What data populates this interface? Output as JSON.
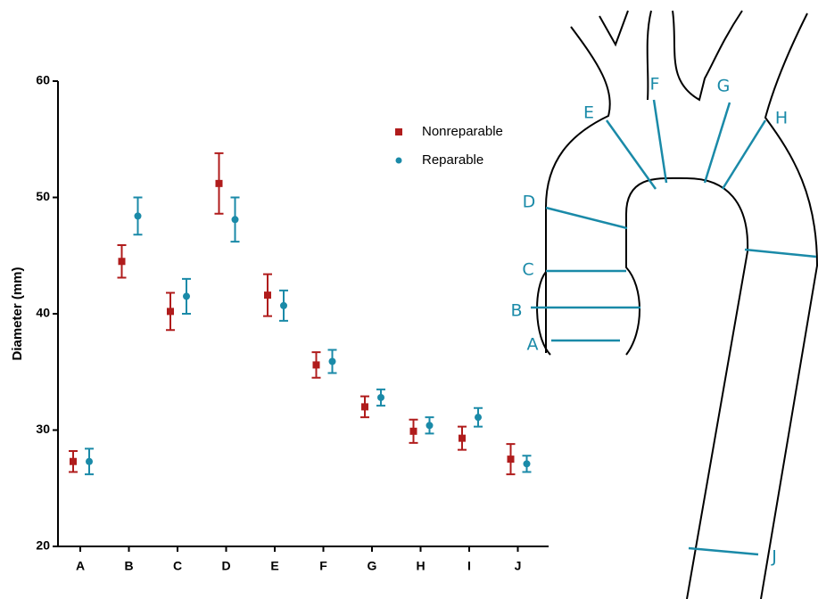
{
  "chart_data": {
    "type": "errorbar",
    "y_label": "Diameter (mm)",
    "categories": [
      "A",
      "B",
      "C",
      "D",
      "E",
      "F",
      "G",
      "H",
      "I",
      "J"
    ],
    "series": [
      {
        "name": "Nonreparable",
        "color": "#b01c1c",
        "marker": "square",
        "values": [
          27.3,
          44.5,
          40.2,
          51.2,
          41.6,
          35.6,
          32.0,
          29.9,
          29.3,
          27.5
        ],
        "errors": [
          0.9,
          1.4,
          1.6,
          2.6,
          1.8,
          1.1,
          0.9,
          1.0,
          1.0,
          1.3
        ]
      },
      {
        "name": "Reparable",
        "color": "#1a8aa8",
        "marker": "circle",
        "values": [
          27.3,
          48.4,
          41.5,
          48.1,
          40.7,
          35.9,
          32.8,
          30.4,
          31.1,
          27.1
        ],
        "errors": [
          1.1,
          1.6,
          1.5,
          1.9,
          1.3,
          1.0,
          0.7,
          0.7,
          0.8,
          0.7
        ]
      }
    ],
    "ylim": [
      20,
      60
    ],
    "yticks": [
      20,
      30,
      40,
      50,
      60
    ],
    "grid": false
  },
  "diagram": {
    "labels": [
      "E",
      "F",
      "G",
      "H",
      "D",
      "C",
      "B",
      "A",
      "J"
    ]
  }
}
